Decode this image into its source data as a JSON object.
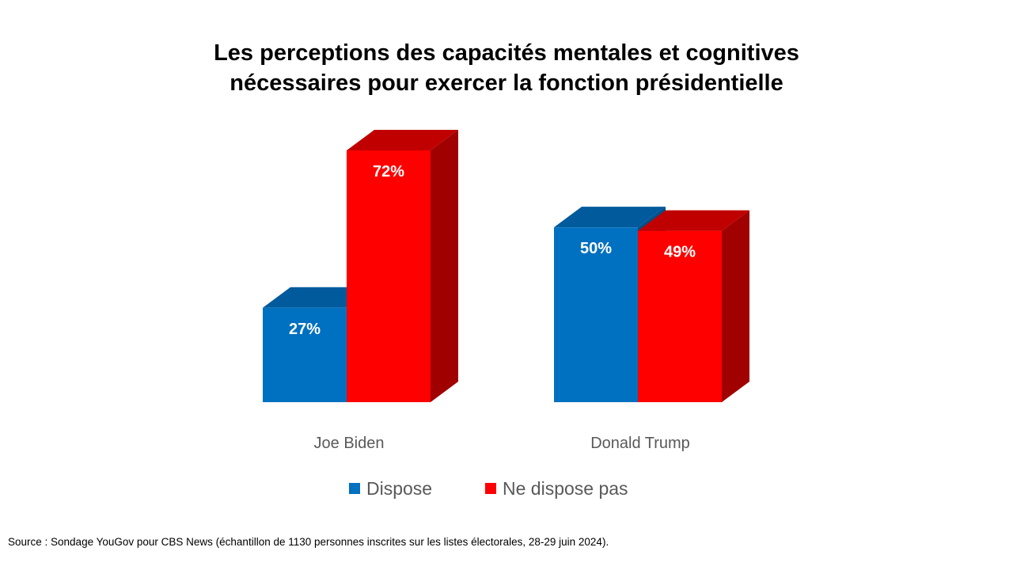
{
  "chart_data": {
    "type": "bar",
    "title_lines": [
      "Les perceptions des capacités mentales et cognitives",
      "nécessaires pour exercer la fonction présidentielle"
    ],
    "categories": [
      "Joe Biden",
      "Donald Trump"
    ],
    "series": [
      {
        "name": "Dispose",
        "values": [
          27,
          50
        ],
        "labels": [
          "27%",
          "50%"
        ],
        "color": "#0070C0",
        "top_color": "#005A9C",
        "side_color": "#004F8A"
      },
      {
        "name": "Ne dispose pas",
        "values": [
          72,
          49
        ],
        "labels": [
          "72%",
          "49%"
        ],
        "color": "#FF0000",
        "top_color": "#C00000",
        "side_color": "#A00000"
      }
    ],
    "value_unit": "%",
    "ylim": [
      0,
      72
    ],
    "grid": false,
    "legend_position": "bottom",
    "three_d": true
  },
  "source": "Source : Sondage YouGov pour CBS News (échantillon de 1130 personnes inscrites sur les listes électorales, 28-29 juin 2024)."
}
